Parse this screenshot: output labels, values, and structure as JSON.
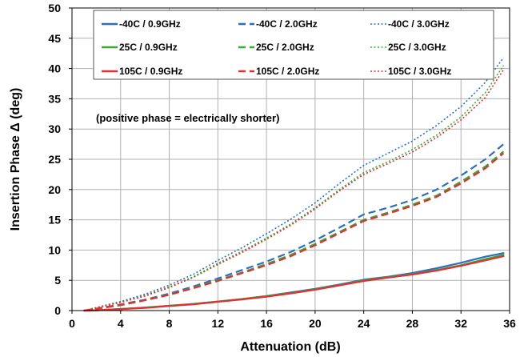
{
  "chart_data": {
    "type": "line",
    "xlabel": "Attenuation  (dB)",
    "ylabel": "Insertion Phase Δ  (deg)",
    "xlim": [
      0,
      36
    ],
    "ylim": [
      0,
      50
    ],
    "x_ticks": [
      0,
      4,
      8,
      12,
      16,
      20,
      24,
      28,
      32,
      36
    ],
    "y_ticks": [
      0,
      5,
      10,
      15,
      20,
      25,
      30,
      35,
      40,
      45,
      50
    ],
    "grid": true,
    "legend_position": "top",
    "annotation": "(positive phase = electrically shorter)",
    "x": [
      1,
      2,
      4,
      6,
      8,
      10,
      12,
      14,
      16,
      18,
      20,
      22,
      24,
      26,
      28,
      30,
      32,
      34,
      35.5
    ],
    "series": [
      {
        "name": "-40C /  0.9GHz",
        "color": "#2F6EBA",
        "dash": "solid",
        "values": [
          0,
          0.05,
          0.25,
          0.5,
          0.8,
          1.1,
          1.5,
          1.9,
          2.4,
          3.0,
          3.6,
          4.3,
          5.1,
          5.6,
          6.2,
          7.0,
          7.9,
          8.9,
          9.5
        ]
      },
      {
        "name": "-40C /  2.0GHz",
        "color": "#2F6EBA",
        "dash": "dashed",
        "values": [
          0,
          0.3,
          1.0,
          1.8,
          2.8,
          4.0,
          5.3,
          6.7,
          8.1,
          9.7,
          11.6,
          13.7,
          15.9,
          17.0,
          18.3,
          20.0,
          22.3,
          25.0,
          27.5
        ]
      },
      {
        "name": "-40C /  3.0GHz",
        "color": "#2F6EBA",
        "dash": "dotted",
        "values": [
          0,
          0.5,
          1.5,
          2.7,
          4.2,
          6.0,
          8.3,
          10.4,
          12.7,
          15.1,
          17.8,
          21.0,
          24.0,
          26.0,
          28.0,
          30.6,
          33.7,
          37.7,
          41.8
        ]
      },
      {
        "name": "25C /  0.9GHz",
        "color": "#3AAA3A",
        "dash": "solid",
        "values": [
          0,
          0.05,
          0.25,
          0.5,
          0.8,
          1.1,
          1.5,
          1.9,
          2.4,
          2.9,
          3.5,
          4.2,
          5.0,
          5.5,
          6.0,
          6.7,
          7.5,
          8.5,
          9.2
        ]
      },
      {
        "name": "25C /  2.0GHz",
        "color": "#3AAA3A",
        "dash": "dashed",
        "values": [
          0,
          0.3,
          0.9,
          1.7,
          2.6,
          3.8,
          5.0,
          6.3,
          7.7,
          9.2,
          11.0,
          13.0,
          15.0,
          16.2,
          17.5,
          19.0,
          21.3,
          23.8,
          26.3
        ]
      },
      {
        "name": "25C /  3.0GHz",
        "color": "#3AAA3A",
        "dash": "dotted",
        "values": [
          0,
          0.45,
          1.4,
          2.5,
          3.9,
          5.6,
          7.8,
          9.8,
          12.0,
          14.3,
          17.0,
          20.0,
          22.8,
          24.6,
          26.6,
          29.0,
          32.0,
          36.0,
          40.5
        ]
      },
      {
        "name": "105C /  0.9GHz",
        "color": "#E03030",
        "dash": "solid",
        "values": [
          0,
          0.05,
          0.25,
          0.45,
          0.75,
          1.05,
          1.45,
          1.85,
          2.3,
          2.85,
          3.45,
          4.15,
          4.9,
          5.45,
          5.95,
          6.6,
          7.4,
          8.3,
          9.0
        ]
      },
      {
        "name": "105C /  2.0GHz",
        "color": "#E03030",
        "dash": "dashed",
        "values": [
          0,
          0.3,
          0.9,
          1.7,
          2.6,
          3.7,
          4.9,
          6.2,
          7.5,
          9.0,
          10.8,
          12.8,
          14.8,
          16.0,
          17.3,
          18.8,
          21.0,
          23.5,
          26.0
        ]
      },
      {
        "name": "105C /  3.0GHz",
        "color": "#E03030",
        "dash": "dotted",
        "values": [
          0,
          0.45,
          1.35,
          2.4,
          3.8,
          5.5,
          7.6,
          9.6,
          11.8,
          14.1,
          16.8,
          19.8,
          22.5,
          24.3,
          26.2,
          28.6,
          31.5,
          35.2,
          39.8
        ]
      }
    ]
  }
}
